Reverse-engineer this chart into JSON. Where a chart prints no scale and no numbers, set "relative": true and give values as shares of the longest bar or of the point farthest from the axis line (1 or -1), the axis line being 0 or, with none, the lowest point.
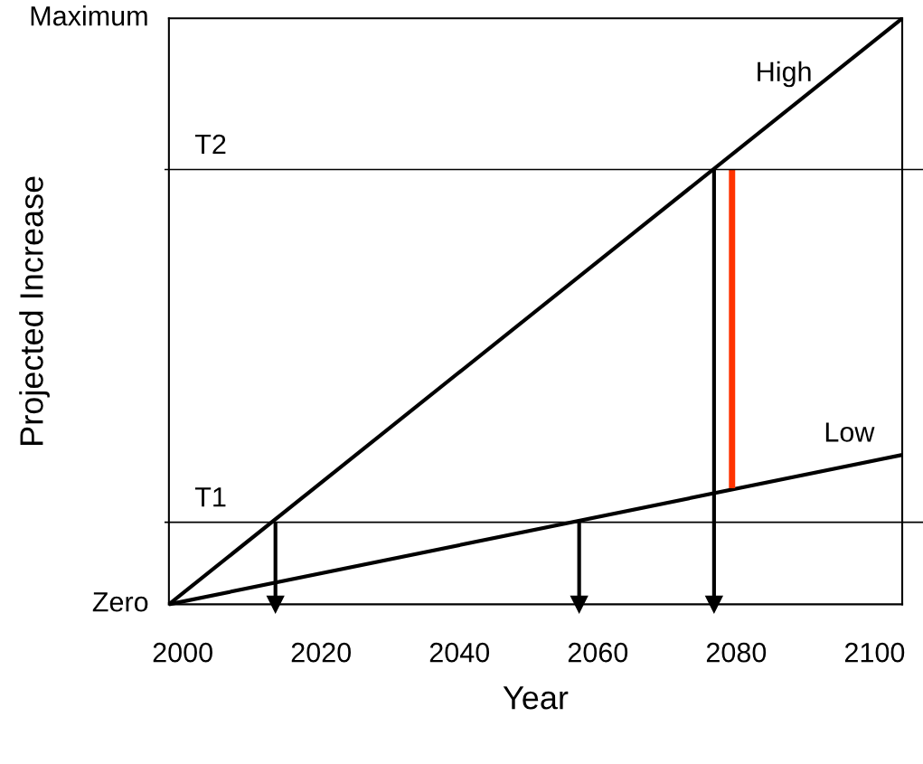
{
  "chart_data": {
    "type": "line",
    "xlabel": "Year",
    "ylabel": "Projected Increase",
    "xlim": [
      1998,
      2104
    ],
    "xticks": [
      2000,
      2020,
      2040,
      2060,
      2080,
      2100
    ],
    "relative": true,
    "grid": false,
    "legend": false,
    "series": [
      {
        "color": "#000000",
        "x": [
          1998,
          2104
        ],
        "values": [
          0,
          1
        ]
      },
      {
        "color": "#000000",
        "x": [
          1998,
          2104
        ],
        "values": [
          0,
          0.255
        ]
      },
      {
        "color": "#000000",
        "x": [
          2013.4,
          2013.4
        ],
        "values": [
          0.14,
          0
        ],
        "marker": "triangle"
      },
      {
        "color": "#000000",
        "x": [
          2057.3,
          2057.3
        ],
        "values": [
          0.14,
          0
        ],
        "marker": "triangle"
      },
      {
        "color": "#000000",
        "x": [
          2076.8,
          2076.8
        ],
        "values": [
          0.742,
          0
        ],
        "marker": "triangle"
      },
      {
        "color": "#ff3300",
        "x": [
          2079.4,
          2079.4
        ],
        "values": [
          0.198,
          0.742
        ]
      }
    ],
    "ref_lines": [
      {
        "axis": "y",
        "value": 0.742,
        "label": "T2",
        "color": "#000000"
      },
      {
        "axis": "y",
        "value": 0.14,
        "label": "T1",
        "color": "#000000"
      }
    ],
    "annotations": [
      {
        "text": "High",
        "x": 2091,
        "y": 0.87
      },
      {
        "text": "Low",
        "x": 2100,
        "y": 0.255
      },
      "Zero",
      "Maximum"
    ]
  }
}
